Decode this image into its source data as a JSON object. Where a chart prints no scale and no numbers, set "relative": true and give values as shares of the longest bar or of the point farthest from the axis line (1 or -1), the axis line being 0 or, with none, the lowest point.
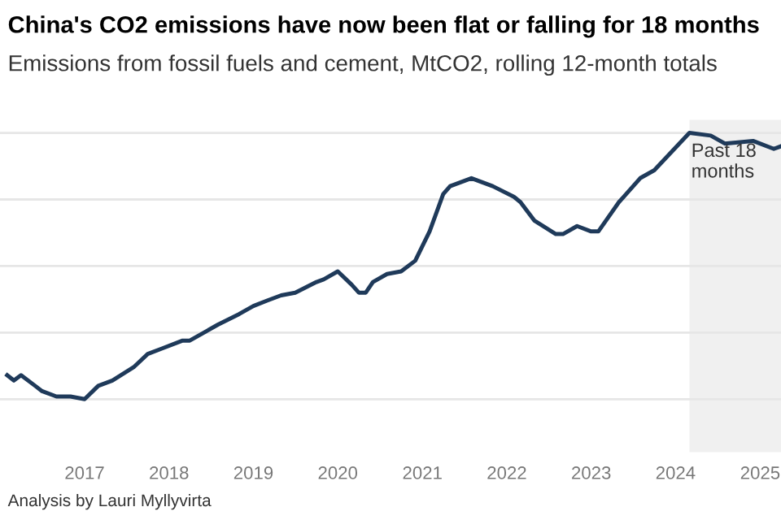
{
  "chart_data": {
    "type": "line",
    "title": "China's CO2 emissions have now been flat or falling for 18 months",
    "subtitle": "Emissions from fossil fuels and cement, MtCO2, rolling 12-month totals",
    "annotations": [
      "Analysis by Lauri Myllyvirta"
    ],
    "relative": true,
    "x": [
      "2016-02",
      "2016-03",
      "2016-04",
      "2016-06",
      "2016-07",
      "2016-09",
      "2016-11",
      "2017-01",
      "2017-03",
      "2017-05",
      "2017-08",
      "2017-10",
      "2017-12",
      "2018-03",
      "2018-04",
      "2018-06",
      "2018-08",
      "2018-11",
      "2019-01",
      "2019-03",
      "2019-05",
      "2019-07",
      "2019-10",
      "2019-11",
      "2020-01",
      "2020-03",
      "2020-04",
      "2020-05",
      "2020-06",
      "2020-08",
      "2020-10",
      "2020-12",
      "2021-02",
      "2021-04",
      "2021-05",
      "2021-08",
      "2021-11",
      "2022-02",
      "2022-03",
      "2022-05",
      "2022-08",
      "2022-09",
      "2022-11",
      "2023-01",
      "2023-02",
      "2023-05",
      "2023-08",
      "2023-10",
      "2024-03",
      "2024-06",
      "2024-08",
      "2024-12",
      "2025-03",
      "2025-04"
    ],
    "series": [
      {
        "color": "#1f3a5a",
        "values": [
          0.09,
          0.07,
          0.09,
          0.05,
          0.03,
          0.01,
          0.01,
          0,
          0.05,
          0.07,
          0.12,
          0.17,
          0.19,
          0.22,
          0.22,
          0.25,
          0.28,
          0.32,
          0.35,
          0.37,
          0.39,
          0.4,
          0.44,
          0.45,
          0.48,
          0.43,
          0.4,
          0.4,
          0.44,
          0.47,
          0.48,
          0.52,
          0.63,
          0.77,
          0.8,
          0.83,
          0.8,
          0.76,
          0.74,
          0.67,
          0.62,
          0.62,
          0.65,
          0.63,
          0.63,
          0.74,
          0.83,
          0.86,
          1,
          0.99,
          0.96,
          0.97,
          0.94,
          0.95
        ]
      }
    ],
    "xlim": [
      "2016-01",
      "2025-04"
    ],
    "xticks": [
      {
        "value": "2017",
        "label": "2017"
      },
      {
        "value": "2018",
        "label": "2018"
      },
      {
        "value": "2019",
        "label": "2019"
      },
      {
        "value": "2020",
        "label": "2020"
      },
      {
        "value": "2021",
        "label": "2021"
      },
      {
        "value": "2022",
        "label": "2022"
      },
      {
        "value": "2023",
        "label": "2023"
      },
      {
        "value": "2024",
        "label": "2024"
      },
      {
        "value": "2025",
        "label": "2025"
      }
    ],
    "bands": [
      {
        "axis": "x",
        "from": "2024-03",
        "to": "2025-04",
        "label": "Past 18 months",
        "color": "#f0f0f0"
      }
    ],
    "grid": "y",
    "line_style": "solid",
    "marker": "none"
  }
}
